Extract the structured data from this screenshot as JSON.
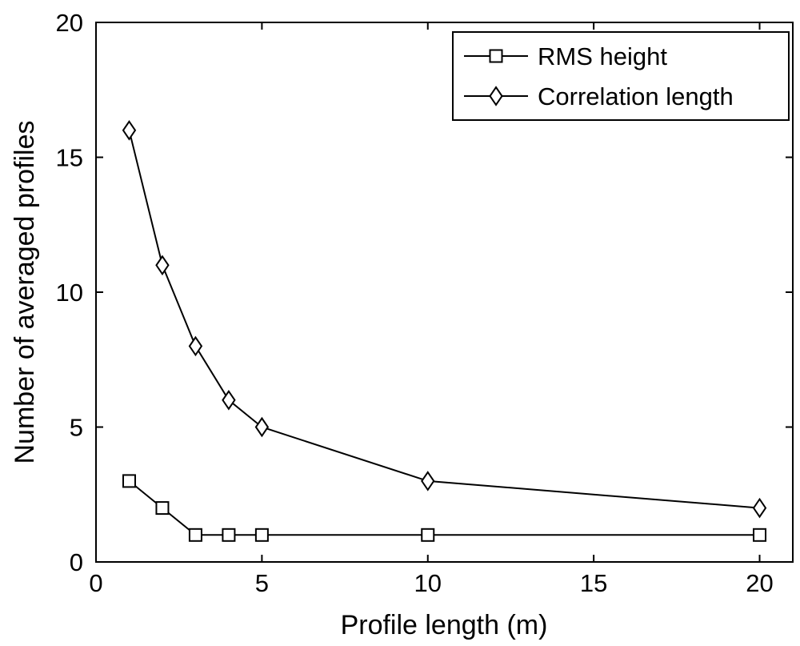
{
  "chart_data": {
    "type": "line",
    "xlabel": "Profile length (m)",
    "ylabel": "Number of averaged profiles",
    "xlim": [
      0,
      21
    ],
    "ylim": [
      0,
      20
    ],
    "xticks": [
      0,
      5,
      10,
      15,
      20
    ],
    "yticks": [
      0,
      5,
      10,
      15,
      20
    ],
    "grid": false,
    "legend_position": "top-right",
    "series": [
      {
        "name": "RMS height",
        "marker": "square",
        "x": [
          1,
          2,
          3,
          4,
          5,
          10,
          20
        ],
        "y": [
          3,
          2,
          1,
          1,
          1,
          1,
          1
        ]
      },
      {
        "name": "Correlation length",
        "marker": "diamond",
        "x": [
          1,
          2,
          3,
          4,
          5,
          10,
          20
        ],
        "y": [
          16,
          11,
          8,
          6,
          5,
          3,
          2
        ]
      }
    ]
  }
}
